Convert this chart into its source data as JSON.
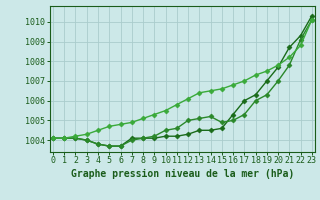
{
  "xlabel": "Graphe pression niveau de la mer (hPa)",
  "x": [
    0,
    1,
    2,
    3,
    4,
    5,
    6,
    7,
    8,
    9,
    10,
    11,
    12,
    13,
    14,
    15,
    16,
    17,
    18,
    19,
    20,
    21,
    22,
    23
  ],
  "series": [
    [
      1004.1,
      1004.1,
      1004.1,
      1004.0,
      1003.8,
      1003.7,
      1003.7,
      1004.1,
      1004.1,
      1004.1,
      1004.2,
      1004.2,
      1004.3,
      1004.5,
      1004.5,
      1004.6,
      1005.3,
      1006.0,
      1006.3,
      1007.0,
      1007.7,
      1008.7,
      1009.3,
      1010.3
    ],
    [
      1004.1,
      1004.1,
      1004.1,
      1004.0,
      1003.8,
      1003.7,
      1003.7,
      1004.0,
      1004.1,
      1004.2,
      1004.5,
      1004.6,
      1005.0,
      1005.1,
      1005.2,
      1004.9,
      1005.0,
      1005.3,
      1006.0,
      1006.3,
      1007.0,
      1007.8,
      1009.1,
      1010.1
    ],
    [
      1004.1,
      1004.1,
      1004.2,
      1004.3,
      1004.5,
      1004.7,
      1004.8,
      1004.9,
      1005.1,
      1005.3,
      1005.5,
      1005.8,
      1006.1,
      1006.4,
      1006.5,
      1006.6,
      1006.8,
      1007.0,
      1007.3,
      1007.5,
      1007.8,
      1008.2,
      1008.8,
      1010.1
    ]
  ],
  "line_colors": [
    "#1a6b1a",
    "#2a882a",
    "#3aaa3a"
  ],
  "marker": "D",
  "markersize": 2.5,
  "linewidth": 1.0,
  "bg_color": "#cce8e8",
  "grid_color": "#aacccc",
  "text_color": "#1a5c1a",
  "ylim": [
    1003.4,
    1010.8
  ],
  "yticks": [
    1004,
    1005,
    1006,
    1007,
    1008,
    1009,
    1010
  ],
  "xticks": [
    0,
    1,
    2,
    3,
    4,
    5,
    6,
    7,
    8,
    9,
    10,
    11,
    12,
    13,
    14,
    15,
    16,
    17,
    18,
    19,
    20,
    21,
    22,
    23
  ],
  "xlabel_fontsize": 7.0,
  "tick_fontsize": 6.0,
  "ytick_fontsize": 6.0
}
